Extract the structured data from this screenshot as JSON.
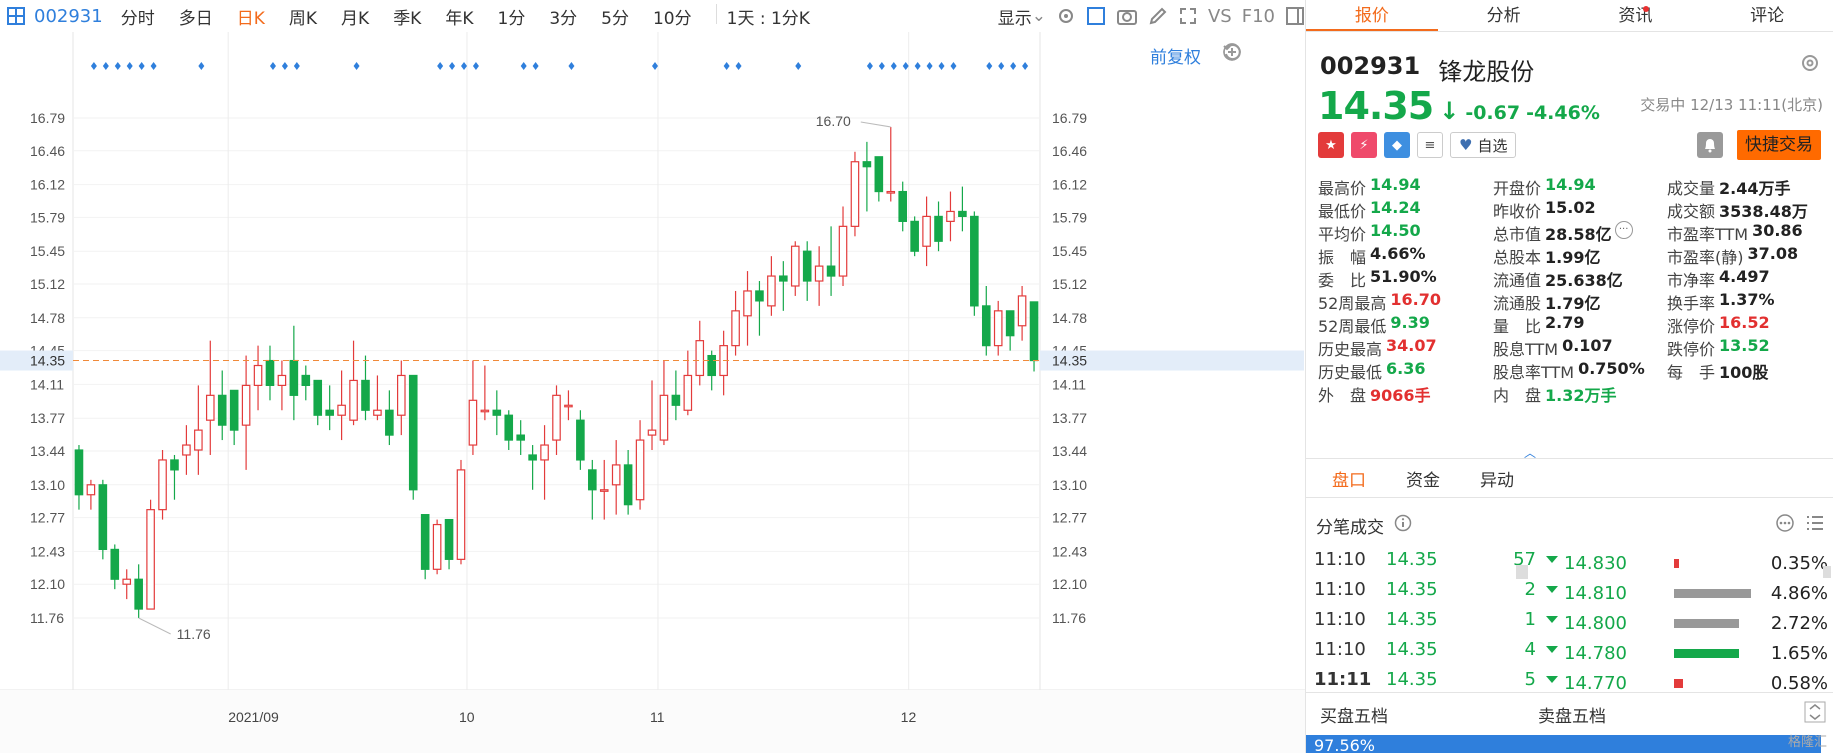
{
  "toolbar": {
    "code": "002931",
    "periods": [
      "分时",
      "多日",
      "日K",
      "周K",
      "月K",
      "季K",
      "年K",
      "1分",
      "3分",
      "5分",
      "10分",
      "1天 : 1分K"
    ],
    "active_period": "日K",
    "display_label": "显示",
    "vs_label": "VS",
    "f10_label": "F10"
  },
  "chart": {
    "qfq_label": "前复权",
    "y_ticks": [
      "16.79",
      "16.46",
      "16.12",
      "15.79",
      "15.45",
      "15.12",
      "14.78",
      "14.45",
      "14.11",
      "13.77",
      "13.44",
      "13.10",
      "12.77",
      "12.43",
      "12.10",
      "11.76"
    ],
    "x_labels": [
      "2021/09",
      "10",
      "11",
      "12"
    ],
    "current_price": "14.35",
    "high_label": "16.70",
    "low_label": "11.76",
    "colors": {
      "up": "#e33b3b",
      "down": "#14a84a",
      "marker": "#2f7fdc",
      "price_line": "#f08a3a"
    },
    "marker_groups": [
      6,
      1,
      3,
      1,
      4,
      2,
      1,
      1,
      2,
      1,
      8,
      4
    ],
    "candles": [
      [
        13.45,
        13.0,
        13.5,
        12.85
      ],
      [
        13.0,
        13.1,
        13.15,
        12.85
      ],
      [
        13.1,
        12.45,
        13.15,
        12.35
      ],
      [
        12.45,
        12.15,
        12.5,
        12.05
      ],
      [
        12.1,
        12.15,
        12.25,
        11.95
      ],
      [
        12.15,
        11.85,
        12.3,
        11.76
      ],
      [
        11.85,
        12.85,
        12.95,
        11.85
      ],
      [
        12.85,
        13.35,
        13.45,
        12.75
      ],
      [
        13.35,
        13.25,
        13.4,
        12.95
      ],
      [
        13.4,
        13.5,
        13.7,
        13.2
      ],
      [
        13.45,
        13.65,
        14.1,
        13.2
      ],
      [
        13.75,
        14.0,
        14.55,
        13.4
      ],
      [
        14.0,
        13.7,
        14.25,
        13.55
      ],
      [
        14.05,
        13.65,
        14.05,
        13.5
      ],
      [
        13.7,
        14.1,
        14.4,
        13.25
      ],
      [
        14.1,
        14.3,
        14.5,
        13.85
      ],
      [
        14.35,
        14.1,
        14.5,
        13.95
      ],
      [
        14.1,
        14.2,
        14.35,
        13.85
      ],
      [
        14.35,
        14.0,
        14.7,
        13.75
      ],
      [
        14.2,
        14.1,
        14.3,
        13.95
      ],
      [
        14.15,
        13.8,
        14.15,
        13.7
      ],
      [
        13.85,
        13.8,
        14.1,
        13.65
      ],
      [
        13.8,
        13.9,
        14.25,
        13.55
      ],
      [
        13.75,
        14.15,
        14.55,
        13.7
      ],
      [
        14.15,
        13.85,
        14.4,
        13.75
      ],
      [
        13.8,
        13.85,
        14.2,
        13.75
      ],
      [
        13.85,
        13.6,
        14.05,
        13.5
      ],
      [
        13.8,
        14.2,
        14.35,
        13.6
      ],
      [
        14.2,
        13.05,
        14.2,
        12.95
      ],
      [
        12.8,
        12.25,
        12.8,
        12.15
      ],
      [
        12.25,
        12.7,
        12.75,
        12.2
      ],
      [
        12.75,
        12.35,
        12.75,
        12.25
      ],
      [
        12.35,
        13.25,
        13.35,
        12.3
      ],
      [
        13.5,
        13.95,
        14.35,
        13.4
      ],
      [
        13.85,
        13.85,
        14.3,
        13.75
      ],
      [
        13.85,
        13.8,
        14.05,
        13.6
      ],
      [
        13.8,
        13.55,
        13.85,
        13.45
      ],
      [
        13.6,
        13.55,
        13.75,
        13.4
      ],
      [
        13.4,
        13.35,
        13.5,
        13.05
      ],
      [
        13.35,
        13.5,
        13.7,
        12.95
      ],
      [
        13.55,
        14.0,
        14.1,
        13.4
      ],
      [
        13.9,
        13.9,
        14.05,
        13.75
      ],
      [
        13.75,
        13.35,
        13.85,
        13.25
      ],
      [
        13.25,
        13.05,
        13.35,
        12.75
      ],
      [
        13.05,
        13.05,
        13.35,
        12.75
      ],
      [
        13.1,
        13.3,
        13.55,
        12.8
      ],
      [
        13.3,
        12.9,
        13.45,
        12.8
      ],
      [
        12.95,
        13.55,
        13.75,
        12.85
      ],
      [
        13.6,
        13.65,
        14.15,
        13.45
      ],
      [
        13.55,
        14.0,
        14.35,
        13.5
      ],
      [
        14.0,
        13.9,
        14.25,
        13.75
      ],
      [
        13.85,
        14.2,
        14.45,
        13.8
      ],
      [
        14.2,
        14.55,
        14.75,
        14.1
      ],
      [
        14.4,
        14.2,
        14.45,
        14.05
      ],
      [
        14.2,
        14.5,
        14.65,
        14.0
      ],
      [
        14.5,
        14.85,
        15.05,
        14.4
      ],
      [
        14.8,
        15.05,
        15.25,
        14.5
      ],
      [
        15.05,
        14.95,
        15.15,
        14.6
      ],
      [
        14.9,
        15.2,
        15.4,
        14.8
      ],
      [
        15.2,
        15.15,
        15.35,
        14.85
      ],
      [
        15.1,
        15.5,
        15.55,
        15.0
      ],
      [
        15.45,
        15.15,
        15.55,
        14.95
      ],
      [
        15.15,
        15.3,
        15.5,
        14.9
      ],
      [
        15.3,
        15.2,
        15.7,
        15.0
      ],
      [
        15.2,
        15.7,
        15.9,
        15.1
      ],
      [
        15.7,
        16.35,
        16.45,
        15.6
      ],
      [
        16.35,
        16.3,
        16.55,
        15.85
      ],
      [
        16.4,
        16.05,
        16.4,
        15.95
      ],
      [
        16.05,
        16.05,
        16.7,
        15.95
      ],
      [
        16.05,
        15.75,
        16.15,
        15.65
      ],
      [
        15.75,
        15.45,
        15.8,
        15.4
      ],
      [
        15.5,
        15.8,
        16.0,
        15.3
      ],
      [
        15.8,
        15.55,
        15.95,
        15.45
      ],
      [
        15.75,
        15.85,
        16.05,
        15.55
      ],
      [
        15.85,
        15.8,
        16.1,
        15.65
      ],
      [
        15.8,
        14.9,
        15.85,
        14.8
      ],
      [
        14.9,
        14.5,
        15.1,
        14.4
      ],
      [
        14.5,
        14.85,
        14.95,
        14.4
      ],
      [
        14.85,
        14.6,
        14.85,
        14.45
      ],
      [
        14.7,
        15.0,
        15.1,
        14.55
      ],
      [
        14.94,
        14.35,
        14.94,
        14.24
      ]
    ]
  },
  "panel": {
    "tabs": [
      "报价",
      "分析",
      "资讯",
      "评论"
    ],
    "active_tab": "报价",
    "code": "002931",
    "name": "锋龙股份",
    "price": "14.35",
    "arrow": "↓",
    "change": "-0.67",
    "change_pct": "-4.46%",
    "trade_status": "交易中 12/13 11:11(北京)",
    "watch_label": "自选",
    "fast_trade_label": "快捷交易",
    "stats": [
      [
        {
          "k": "最高价",
          "v": "14.94",
          "c": "green"
        },
        {
          "k": "开盘价",
          "v": "14.94",
          "c": "green"
        },
        {
          "k": "成交量",
          "v": "2.44万手",
          "c": ""
        }
      ],
      [
        {
          "k": "最低价",
          "v": "14.24",
          "c": "green"
        },
        {
          "k": "昨收价",
          "v": "15.02",
          "c": ""
        },
        {
          "k": "成交额",
          "v": "3538.48万",
          "c": ""
        }
      ],
      [
        {
          "k": "平均价",
          "v": "14.50",
          "c": "green"
        },
        {
          "k": "总市值",
          "v": "28.58亿",
          "c": ""
        },
        {
          "k": "市盈率TTM",
          "v": "30.86",
          "c": ""
        }
      ],
      [
        {
          "k": "振　幅",
          "v": "4.66%",
          "c": ""
        },
        {
          "k": "总股本",
          "v": "1.99亿",
          "c": ""
        },
        {
          "k": "市盈率(静)",
          "v": "37.08",
          "c": ""
        }
      ],
      [
        {
          "k": "委　比",
          "v": "51.90%",
          "c": ""
        },
        {
          "k": "流通值",
          "v": "25.638亿",
          "c": ""
        },
        {
          "k": "市净率",
          "v": "4.497",
          "c": ""
        }
      ],
      [
        {
          "k": "52周最高",
          "v": "16.70",
          "c": "red"
        },
        {
          "k": "流通股",
          "v": "1.79亿",
          "c": ""
        },
        {
          "k": "换手率",
          "v": "1.37%",
          "c": ""
        }
      ],
      [
        {
          "k": "52周最低",
          "v": "9.39",
          "c": "green"
        },
        {
          "k": "量　比",
          "v": "2.79",
          "c": ""
        },
        {
          "k": "涨停价",
          "v": "16.52",
          "c": "red"
        }
      ],
      [
        {
          "k": "历史最高",
          "v": "34.07",
          "c": "red"
        },
        {
          "k": "股息TTM",
          "v": "0.107",
          "c": ""
        },
        {
          "k": "跌停价",
          "v": "13.52",
          "c": "green"
        }
      ],
      [
        {
          "k": "历史最低",
          "v": "6.36",
          "c": "green"
        },
        {
          "k": "股息率TTM",
          "v": "0.750%",
          "c": ""
        },
        {
          "k": "每　手",
          "v": "100股",
          "c": ""
        }
      ],
      [
        {
          "k": "外　盘",
          "v": "9066手",
          "c": "red"
        },
        {
          "k": "内　盘",
          "v": "1.32万手",
          "c": "green"
        },
        {
          "k": "",
          "v": "",
          "c": ""
        }
      ]
    ],
    "subtabs": [
      "盘口",
      "资金",
      "异动"
    ],
    "tick_title": "分笔成交",
    "ticks": [
      {
        "t": "11:10",
        "p": "14.35",
        "v": "57"
      },
      {
        "t": "11:10",
        "p": "14.35",
        "v": "2"
      },
      {
        "t": "11:10",
        "p": "14.35",
        "v": "1"
      },
      {
        "t": "11:10",
        "p": "14.35",
        "v": "4"
      },
      {
        "t": "11:11",
        "p": "14.35",
        "v": "5"
      }
    ],
    "dist": [
      {
        "p": "14.830",
        "pct": "0.35%",
        "bar": 0.04,
        "color": "#e33b3b"
      },
      {
        "p": "14.810",
        "pct": "4.86%",
        "bar": 0.85,
        "color": "#999999"
      },
      {
        "p": "14.800",
        "pct": "2.72%",
        "bar": 0.72,
        "color": "#999999"
      },
      {
        "p": "14.780",
        "pct": "1.65%",
        "bar": 0.72,
        "color": "#14a84a"
      },
      {
        "p": "14.770",
        "pct": "0.58%",
        "bar": 0.1,
        "color": "#e33b3b"
      }
    ],
    "book_buy": "买盘五档",
    "book_sell": "卖盘五档",
    "book_pct": "97.56%",
    "watermark": "格隆汇"
  }
}
